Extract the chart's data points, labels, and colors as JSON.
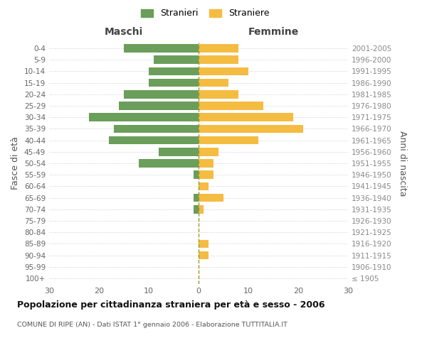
{
  "age_groups": [
    "100+",
    "95-99",
    "90-94",
    "85-89",
    "80-84",
    "75-79",
    "70-74",
    "65-69",
    "60-64",
    "55-59",
    "50-54",
    "45-49",
    "40-44",
    "35-39",
    "30-34",
    "25-29",
    "20-24",
    "15-19",
    "10-14",
    "5-9",
    "0-4"
  ],
  "birth_years": [
    "≤ 1905",
    "1906-1910",
    "1911-1915",
    "1916-1920",
    "1921-1925",
    "1926-1930",
    "1931-1935",
    "1936-1940",
    "1941-1945",
    "1946-1950",
    "1951-1955",
    "1956-1960",
    "1961-1965",
    "1966-1970",
    "1971-1975",
    "1976-1980",
    "1981-1985",
    "1986-1990",
    "1991-1995",
    "1996-2000",
    "2001-2005"
  ],
  "maschi": [
    0,
    0,
    0,
    0,
    0,
    0,
    1,
    1,
    0,
    1,
    12,
    8,
    18,
    17,
    22,
    16,
    15,
    10,
    10,
    9,
    15
  ],
  "femmine": [
    0,
    0,
    2,
    2,
    0,
    0,
    1,
    5,
    2,
    3,
    3,
    4,
    12,
    21,
    19,
    13,
    8,
    6,
    10,
    8,
    8
  ],
  "color_maschi": "#6a9e5a",
  "color_femmine": "#f5bc42",
  "title": "Popolazione per cittadinanza straniera per età e sesso - 2006",
  "subtitle": "COMUNE DI RIPE (AN) - Dati ISTAT 1° gennaio 2006 - Elaborazione TUTTITALIA.IT",
  "label_maschi": "Maschi",
  "label_femmine": "Femmine",
  "ylabel_left": "Fasce di età",
  "ylabel_right": "Anni di nascita",
  "legend_maschi": "Stranieri",
  "legend_femmine": "Straniere",
  "xlim": 30,
  "xticks": [
    -30,
    -20,
    -10,
    0,
    10,
    20,
    30
  ],
  "xtick_labels": [
    "30",
    "20",
    "10",
    "0",
    "10",
    "20",
    "30"
  ],
  "background_color": "#ffffff",
  "grid_color": "#cccccc",
  "dashed_line_color": "#999933",
  "bar_height": 0.72
}
